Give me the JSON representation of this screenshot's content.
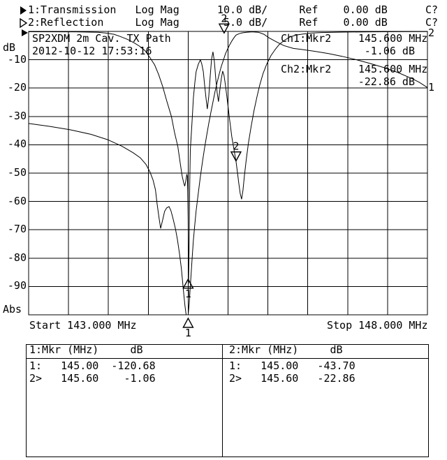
{
  "header": {
    "ch1_line": "1:Transmission   Log Mag      10.0 dB/     Ref    0.00 dB      C?",
    "ch2_line": "2:Reflection     Log Mag       5.0 dB/     Ref    0.00 dB      C?"
  },
  "plot": {
    "title_line1": "SP2XDM 2m Cav. TX Path",
    "title_line2": "2012-10-12 17:53:16",
    "y_unit": "dB",
    "y_labels": [
      "-10",
      "-20",
      "-30",
      "-40",
      "-50",
      "-60",
      "-70",
      "-80",
      "-90"
    ],
    "y_bottom_label": "Abs",
    "x_start_label": "Start 143.000 MHz",
    "x_stop_label": "Stop 148.000 MHz",
    "readouts": {
      "ch1_label": "Ch1:Mkr2",
      "ch1_freq": "145.600 MHz",
      "ch1_value": "-1.06 dB",
      "ch2_label": "Ch2:Mkr2",
      "ch2_freq": "145.600 MHz",
      "ch2_value": "-22.86 dB"
    },
    "trace_end_labels": {
      "trace1": "1",
      "trace2": "2"
    }
  },
  "marker_table_1": {
    "header": "1:Mkr (MHz)     dB",
    "rows": [
      "1:   145.00  -120.68",
      "2>   145.60    -1.06"
    ]
  },
  "marker_table_2": {
    "header": "2:Mkr (MHz)     dB",
    "rows": [
      "1:   145.00   -43.70",
      "2>   145.60   -22.86"
    ]
  },
  "chart_data": {
    "type": "line",
    "title": "SP2XDM 2m Cav. TX Path",
    "timestamp": "2012-10-12 17:53:16",
    "x_axis": {
      "start_mhz": 143.0,
      "stop_mhz": 148.0,
      "divisions": 10,
      "grid": true
    },
    "y_axis": {
      "ref_db": 0.0,
      "divisions": 10,
      "ch1_scale_db_per_div": 10.0,
      "ch2_scale_db_per_div": 5.0,
      "tick_labels_ch1": [
        -10,
        -20,
        -30,
        -40,
        -50,
        -60,
        -70,
        -80,
        -90
      ]
    },
    "markers": [
      {
        "marker": 1,
        "freq_mhz": 145.0,
        "ch1_db": -120.68,
        "ch2_db": -43.7
      },
      {
        "marker": 2,
        "freq_mhz": 145.6,
        "ch1_db": -1.06,
        "ch2_db": -22.86
      }
    ],
    "marker_symbols": [
      {
        "glyph": "2",
        "trace": 1,
        "freq": 145.6,
        "db": -1.06,
        "dir": "down",
        "offscale": false
      },
      {
        "glyph": "2",
        "trace": 2,
        "freq": 145.6,
        "db": -22.86,
        "dir": "down",
        "offscale": false
      },
      {
        "glyph": "1",
        "trace": 2,
        "freq": 145.0,
        "db": -43.7,
        "dir": "up",
        "offscale": false
      },
      {
        "glyph": "1",
        "trace": 1,
        "freq": 145.0,
        "db": -120.68,
        "dir": "up",
        "offscale": true
      }
    ],
    "series": [
      {
        "name": "1: Transmission",
        "scale_db_per_div": 10,
        "points": [
          [
            143.0,
            -32.5
          ],
          [
            143.26,
            -33.5
          ],
          [
            143.52,
            -34.7
          ],
          [
            143.78,
            -36.3
          ],
          [
            143.99,
            -38.2
          ],
          [
            144.17,
            -40.5
          ],
          [
            144.31,
            -42.8
          ],
          [
            144.4,
            -44.6
          ],
          [
            144.47,
            -46.9
          ],
          [
            144.52,
            -49.5
          ],
          [
            144.56,
            -52.5
          ],
          [
            144.59,
            -55.9
          ],
          [
            144.61,
            -60.8
          ],
          [
            144.635,
            -65.8
          ],
          [
            144.655,
            -69.5
          ],
          [
            144.68,
            -66.5
          ],
          [
            144.705,
            -63.5
          ],
          [
            144.73,
            -62.3
          ],
          [
            144.76,
            -61.8
          ],
          [
            144.785,
            -63.3
          ],
          [
            144.81,
            -66.0
          ],
          [
            144.84,
            -69.5
          ],
          [
            144.865,
            -73.4
          ],
          [
            144.89,
            -78.1
          ],
          [
            144.915,
            -83.7
          ],
          [
            144.94,
            -91.1
          ],
          [
            144.96,
            -96.8
          ],
          [
            144.975,
            -100.0
          ],
          [
            145.0,
            -100.0
          ],
          [
            145.013,
            -96.1
          ],
          [
            145.03,
            -88.7
          ],
          [
            145.048,
            -80.8
          ],
          [
            145.065,
            -73.9
          ],
          [
            145.083,
            -68.2
          ],
          [
            145.1,
            -63.3
          ],
          [
            145.127,
            -57.1
          ],
          [
            145.153,
            -51.2
          ],
          [
            145.18,
            -45.8
          ],
          [
            145.206,
            -41.1
          ],
          [
            145.232,
            -36.7
          ],
          [
            145.258,
            -32.5
          ],
          [
            145.285,
            -28.6
          ],
          [
            145.311,
            -24.9
          ],
          [
            145.337,
            -21.2
          ],
          [
            145.363,
            -18.0
          ],
          [
            145.39,
            -15.0
          ],
          [
            145.416,
            -12.3
          ],
          [
            145.442,
            -10.1
          ],
          [
            145.468,
            -7.9
          ],
          [
            145.495,
            -6.2
          ],
          [
            145.521,
            -4.7
          ],
          [
            145.547,
            -3.4
          ],
          [
            145.573,
            -2.3
          ],
          [
            145.6,
            -1.3
          ],
          [
            145.64,
            -0.8
          ],
          [
            145.68,
            -0.5
          ],
          [
            145.73,
            -0.3
          ],
          [
            145.8,
            -0.15
          ],
          [
            145.88,
            -0.3
          ],
          [
            145.95,
            -1.0
          ],
          [
            146.01,
            -2.2
          ],
          [
            146.1,
            -3.6
          ],
          [
            146.2,
            -5.0
          ],
          [
            146.32,
            -6.0
          ],
          [
            146.41,
            -6.3
          ],
          [
            146.58,
            -7.0
          ],
          [
            146.76,
            -7.8
          ],
          [
            146.93,
            -8.8
          ],
          [
            147.11,
            -10.0
          ],
          [
            147.28,
            -11.3
          ],
          [
            147.46,
            -12.8
          ],
          [
            147.63,
            -14.5
          ],
          [
            147.81,
            -16.7
          ],
          [
            147.9,
            -18.0
          ],
          [
            148.0,
            -19.8
          ]
        ]
      },
      {
        "name": "2: Reflection",
        "scale_db_per_div": 5,
        "points": [
          [
            143.0,
            -0.06
          ],
          [
            143.6,
            -0.08
          ],
          [
            143.87,
            -0.15
          ],
          [
            143.97,
            -0.3
          ],
          [
            144.07,
            -0.5
          ],
          [
            144.15,
            -0.9
          ],
          [
            144.24,
            -1.4
          ],
          [
            144.32,
            -2.0
          ],
          [
            144.39,
            -2.6
          ],
          [
            144.46,
            -3.4
          ],
          [
            144.52,
            -4.6
          ],
          [
            144.58,
            -5.9
          ],
          [
            144.63,
            -7.6
          ],
          [
            144.68,
            -9.7
          ],
          [
            144.73,
            -12.2
          ],
          [
            144.79,
            -15.0
          ],
          [
            144.83,
            -17.9
          ],
          [
            144.87,
            -20.3
          ],
          [
            144.9,
            -23.2
          ],
          [
            144.925,
            -25.5
          ],
          [
            144.944,
            -26.7
          ],
          [
            144.957,
            -27.3
          ],
          [
            144.97,
            -26.4
          ],
          [
            144.983,
            -25.2
          ],
          [
            144.99,
            -25.6
          ],
          [
            144.996,
            -28.0
          ],
          [
            145.0,
            -33.0
          ],
          [
            145.004,
            -44.5
          ],
          [
            145.008,
            -41.9
          ],
          [
            145.013,
            -36.3
          ],
          [
            145.017,
            -30.2
          ],
          [
            145.022,
            -25.2
          ],
          [
            145.027,
            -20.9
          ],
          [
            145.04,
            -17.9
          ],
          [
            145.053,
            -14.8
          ],
          [
            145.066,
            -11.7
          ],
          [
            145.084,
            -9.0
          ],
          [
            145.1,
            -7.1
          ],
          [
            145.127,
            -5.8
          ],
          [
            145.153,
            -5.0
          ],
          [
            145.17,
            -5.7
          ],
          [
            145.19,
            -7.1
          ],
          [
            145.206,
            -9.4
          ],
          [
            145.223,
            -11.7
          ],
          [
            145.24,
            -13.7
          ],
          [
            145.258,
            -11.5
          ],
          [
            145.276,
            -8.0
          ],
          [
            145.293,
            -4.9
          ],
          [
            145.311,
            -3.6
          ],
          [
            145.328,
            -5.3
          ],
          [
            145.346,
            -8.3
          ],
          [
            145.363,
            -10.8
          ],
          [
            145.38,
            -12.4
          ],
          [
            145.398,
            -10.2
          ],
          [
            145.416,
            -8.3
          ],
          [
            145.433,
            -7.0
          ],
          [
            145.45,
            -7.8
          ],
          [
            145.468,
            -9.5
          ],
          [
            145.495,
            -12.6
          ],
          [
            145.52,
            -15.6
          ],
          [
            145.547,
            -18.6
          ],
          [
            145.573,
            -20.7
          ],
          [
            145.6,
            -22.9
          ],
          [
            145.617,
            -24.8
          ],
          [
            145.635,
            -26.8
          ],
          [
            145.652,
            -28.6
          ],
          [
            145.67,
            -29.6
          ],
          [
            145.687,
            -28.0
          ],
          [
            145.705,
            -25.5
          ],
          [
            145.73,
            -22.4
          ],
          [
            145.757,
            -19.6
          ],
          [
            145.792,
            -16.6
          ],
          [
            145.827,
            -13.9
          ],
          [
            145.862,
            -11.6
          ],
          [
            145.897,
            -9.5
          ],
          [
            145.94,
            -7.4
          ],
          [
            145.984,
            -5.8
          ],
          [
            146.037,
            -4.3
          ],
          [
            146.09,
            -3.2
          ],
          [
            146.142,
            -2.3
          ],
          [
            146.203,
            -1.6
          ],
          [
            146.273,
            -1.0
          ],
          [
            146.352,
            -0.65
          ],
          [
            146.44,
            -0.45
          ],
          [
            146.545,
            -0.3
          ],
          [
            146.667,
            -0.2
          ],
          [
            146.93,
            -0.12
          ],
          [
            147.28,
            -0.08
          ],
          [
            147.63,
            -0.05
          ],
          [
            148.0,
            -0.03
          ]
        ]
      }
    ]
  }
}
